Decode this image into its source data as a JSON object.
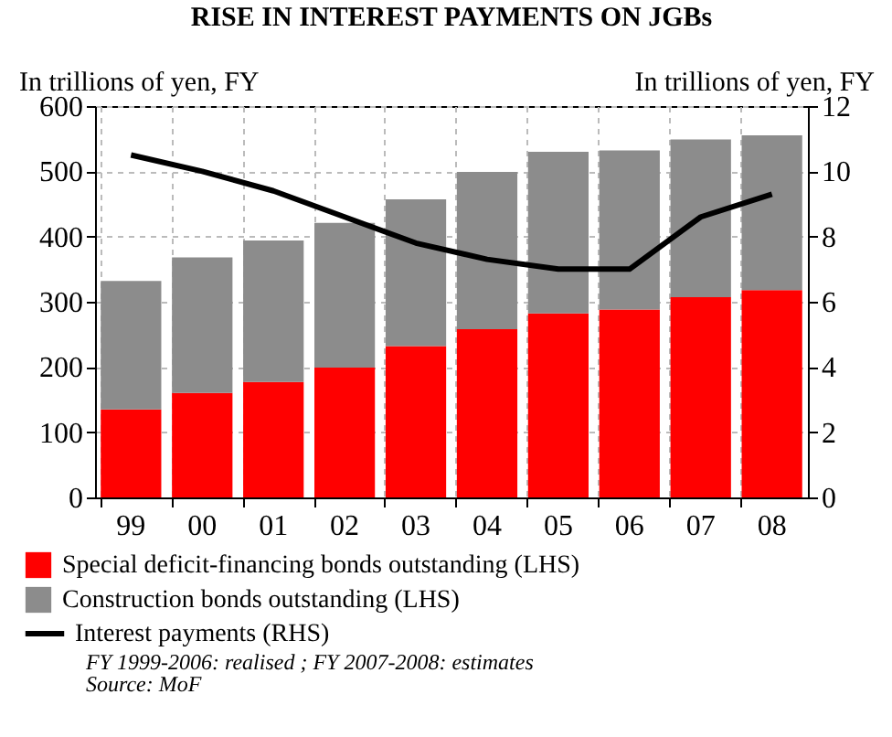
{
  "chart_data": {
    "type": "bar",
    "title": "RISE IN INTEREST PAYMENTS ON JGBs",
    "ylabel": "In trillions of yen, FY",
    "y2label": "In trillions of yen, FY",
    "categories": [
      "99",
      "00",
      "01",
      "02",
      "03",
      "04",
      "05",
      "06",
      "07",
      "08"
    ],
    "stacked": true,
    "series": [
      {
        "name": "Special deficit-financing bonds outstanding (LHS)",
        "color": "#ff0000",
        "values": [
          135,
          160,
          177,
          199,
          232,
          258,
          282,
          288,
          307,
          318
        ]
      },
      {
        "name": "Construction bonds outstanding (LHS)",
        "color": "#8c8c8c",
        "values": [
          197,
          208,
          217,
          222,
          225,
          241,
          248,
          244,
          242,
          237
        ]
      },
      {
        "name": "Interest payments (RHS)",
        "color": "#000000",
        "type": "line",
        "axis": "y2",
        "values": [
          10.5,
          10.0,
          9.4,
          8.6,
          7.8,
          7.3,
          7.0,
          7.0,
          8.6,
          9.3
        ]
      }
    ],
    "ylim": [
      0,
      600
    ],
    "yticks": [
      0,
      100,
      200,
      300,
      400,
      500,
      600
    ],
    "y2lim": [
      0,
      12
    ],
    "y2ticks": [
      0,
      2,
      4,
      6,
      8,
      10,
      12
    ],
    "grid": true,
    "legend": "bottom",
    "marker": "none",
    "line_style": "solid",
    "annotations": [
      "FY 1999-2006: realised ; FY 2007-2008: estimates",
      "Source: MoF"
    ]
  }
}
